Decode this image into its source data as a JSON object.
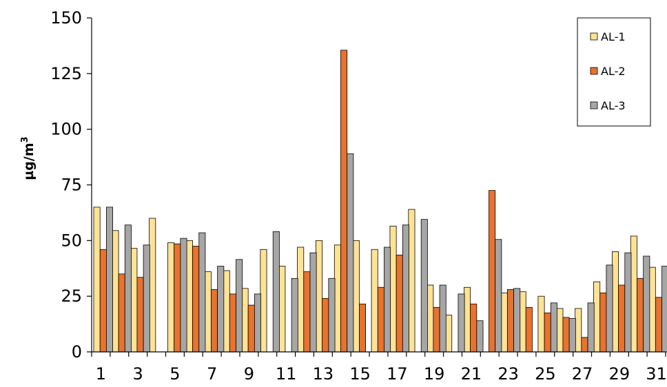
{
  "chart_data": {
    "type": "bar",
    "title": "",
    "xlabel": "",
    "ylabel": "µg/m",
    "ylabel_superscript": "3",
    "ylim": [
      0,
      150
    ],
    "yticks": [
      "0",
      "25",
      "50",
      "75",
      "100",
      "125",
      "150"
    ],
    "categories": [
      1,
      2,
      3,
      4,
      5,
      6,
      7,
      8,
      9,
      10,
      11,
      12,
      13,
      14,
      15,
      16,
      17,
      18,
      19,
      20,
      21,
      22,
      23,
      24,
      25,
      26,
      27,
      28,
      29,
      30,
      31
    ],
    "xtick_labels_shown": [
      "1",
      "3",
      "5",
      "7",
      "9",
      "11",
      "13",
      "15",
      "17",
      "19",
      "21",
      "23",
      "25",
      "27",
      "29",
      "31"
    ],
    "legend_position": "top-right",
    "grid": false,
    "series": [
      {
        "name": "AL-1",
        "color": "#FFE394",
        "values": [
          65,
          54.5,
          46.5,
          60,
          49,
          50,
          36,
          36.5,
          28.5,
          46,
          38.5,
          47,
          50,
          48,
          50,
          46,
          56.5,
          64,
          30,
          16.5,
          29,
          null,
          26.5,
          27,
          25,
          19.5,
          19.5,
          31.5,
          45,
          52,
          38
        ]
      },
      {
        "name": "AL-2",
        "color": "#E8722E",
        "values": [
          46,
          35,
          33.5,
          null,
          48.5,
          47.5,
          28,
          26,
          21,
          null,
          null,
          36,
          24,
          135.5,
          21.5,
          29,
          43.5,
          null,
          20,
          null,
          21.5,
          72.5,
          28,
          20,
          17.5,
          15.5,
          6.5,
          26.5,
          30,
          33,
          24.5
        ]
      },
      {
        "name": "AL-3",
        "color": "#A6A6A6",
        "values": [
          65,
          57,
          48,
          null,
          51,
          53.5,
          38.5,
          41.5,
          26,
          54,
          33,
          44.5,
          33,
          89,
          null,
          47,
          57,
          59.5,
          30,
          26,
          14,
          50.5,
          28.5,
          null,
          22,
          15,
          22,
          39,
          44.5,
          43,
          38.5
        ]
      }
    ]
  }
}
